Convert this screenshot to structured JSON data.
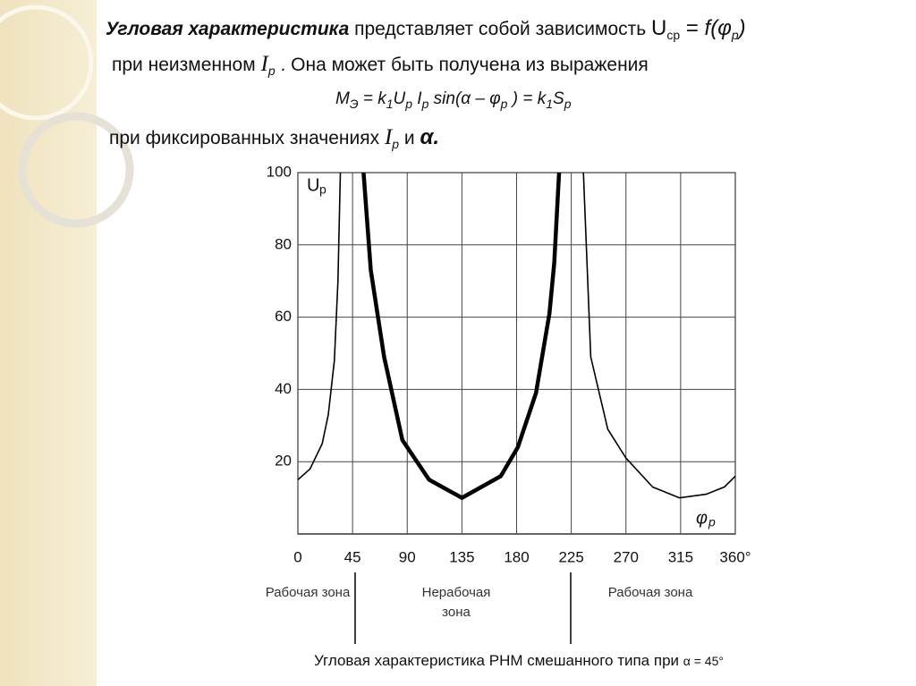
{
  "text": {
    "lines": [
      [
        "Угловая характеристика",
        " представляет собой зависимость ",
        "U",
        "ср",
        " = ",
        "f(φ",
        "р",
        ")"
      ],
      [
        "при неизменном ",
        "I",
        "р",
        " .  Она может быть получена из выражения"
      ],
      [
        "M",
        "Э",
        " = k",
        "1",
        "U",
        "р",
        " I",
        "р",
        " sin(α – φ",
        "р",
        " ) = k",
        "1",
        "S",
        "р"
      ],
      [
        "при фиксированных значениях ",
        "I",
        "р",
        " и ",
        "α."
      ]
    ]
  },
  "chart_data": {
    "type": "line",
    "y_label": [
      "U",
      "р"
    ],
    "x_label": [
      "φ",
      "р"
    ],
    "xlim": [
      0,
      360
    ],
    "ylim": [
      0,
      100
    ],
    "xticks": [
      0,
      45,
      90,
      135,
      180,
      225,
      270,
      315,
      {
        "value": 360,
        "label": "360°"
      }
    ],
    "yticks": [
      20,
      40,
      60,
      80,
      100
    ],
    "grid": true,
    "series": [
      {
        "color": "#000000",
        "width": "thin",
        "x": [
          0,
          10,
          20,
          25,
          30,
          33,
          35,
          null,
          235,
          241,
          255,
          270,
          292,
          314,
          336,
          351,
          360
        ],
        "values": [
          15,
          18,
          25,
          33,
          48,
          70,
          100,
          null,
          100,
          49,
          29,
          21,
          13,
          10,
          11,
          13,
          16
        ]
      },
      {
        "color": "#000000",
        "width": "thick",
        "x": [
          54,
          60,
          71,
          86,
          108,
          135,
          167,
          181,
          196,
          207,
          211,
          215
        ],
        "values": [
          100,
          73,
          49,
          26,
          15,
          10,
          16,
          24,
          39,
          61,
          75,
          100
        ]
      }
    ],
    "zones": [
      "Рабочая зона",
      "Нерабочая зона",
      "Рабочая зона"
    ],
    "caption": [
      "Угловая характеристика РНМ смешанного типа при ",
      "α = 45°"
    ]
  }
}
